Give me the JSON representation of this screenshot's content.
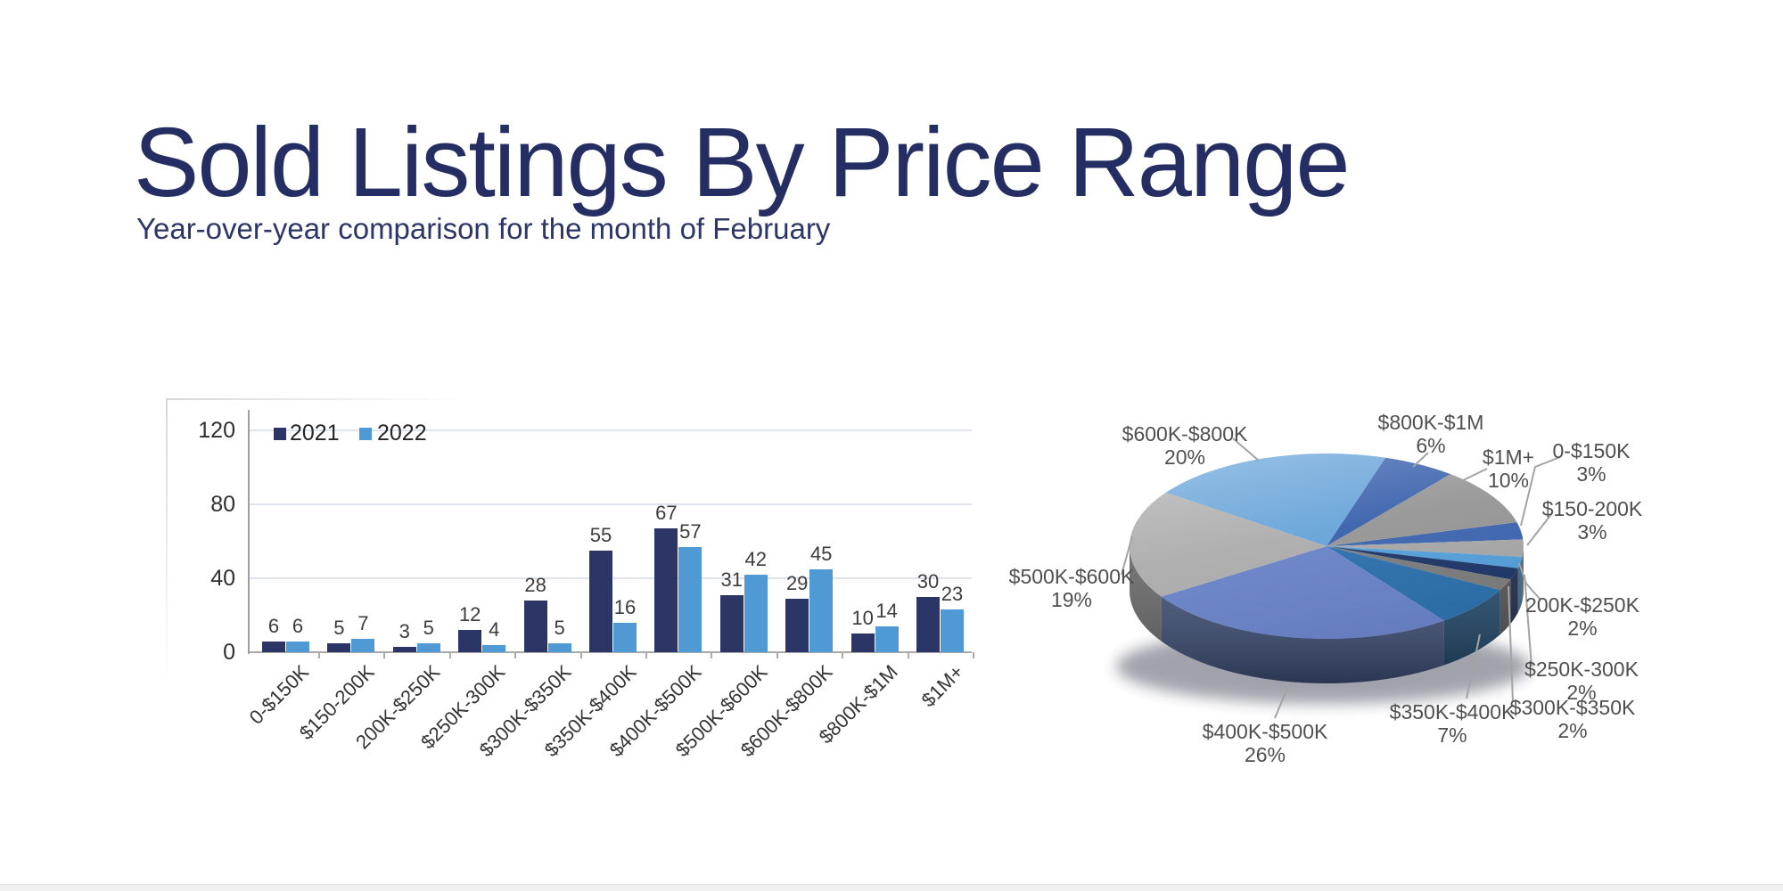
{
  "header": {
    "title": "Sold Listings By Price Range",
    "subtitle": "Year-over-year comparison for the month of February"
  },
  "chart_data": [
    {
      "type": "bar",
      "title": "Sold Listings By Price Range",
      "subtitle": "Year-over-year comparison for the month of February",
      "categories": [
        "0-$150K",
        "$150-200K",
        "200K-$250K",
        "$250K-300K",
        "$300K-$350K",
        "$350K-$400K",
        "$400K-$500K",
        "$500K-$600K",
        "$600K-$800K",
        "$800K-$1M",
        "$1M+"
      ],
      "series": [
        {
          "name": "2021",
          "color": "#2b3566",
          "values": [
            6,
            5,
            3,
            12,
            28,
            55,
            67,
            31,
            29,
            10,
            30
          ]
        },
        {
          "name": "2022",
          "color": "#4f9ad5",
          "values": [
            6,
            7,
            5,
            4,
            5,
            16,
            57,
            42,
            45,
            14,
            23
          ]
        }
      ],
      "ylim": [
        0,
        120
      ],
      "yticks": [
        0,
        40,
        80,
        120
      ],
      "grid": true,
      "legend_position": "top-left",
      "value_labels": true,
      "xlabel": "",
      "ylabel": ""
    },
    {
      "type": "pie",
      "style": "3d",
      "start_angle_deg": 75,
      "direction": "clockwise",
      "slices": [
        {
          "label": "0-$150K",
          "value": 3,
          "pct_label": "3%",
          "color": "#3e66b0"
        },
        {
          "label": "$150-200K",
          "value": 3,
          "pct_label": "3%",
          "color": "#a8a8a8"
        },
        {
          "label": "200K-$250K",
          "value": 2,
          "pct_label": "2%",
          "color": "#55a0db"
        },
        {
          "label": "$250K-300K",
          "value": 2,
          "pct_label": "2%",
          "color": "#1f3869"
        },
        {
          "label": "$300K-$350K",
          "value": 2,
          "pct_label": "2%",
          "color": "#7d7d7d"
        },
        {
          "label": "$350K-$400K",
          "value": 7,
          "pct_label": "7%",
          "color": "#2e71ad"
        },
        {
          "label": "$400K-$500K",
          "value": 26,
          "pct_label": "26%",
          "color": "#6a84c9"
        },
        {
          "label": "$500K-$600K",
          "value": 19,
          "pct_label": "19%",
          "color": "#adadad"
        },
        {
          "label": "$600K-$800K",
          "value": 20,
          "pct_label": "20%",
          "color": "#68a4d9"
        },
        {
          "label": "$800K-$1M",
          "value": 6,
          "pct_label": "6%",
          "color": "#3a62ac"
        },
        {
          "label": "$1M+",
          "value": 10,
          "pct_label": "10%",
          "color": "#969696"
        }
      ]
    }
  ]
}
